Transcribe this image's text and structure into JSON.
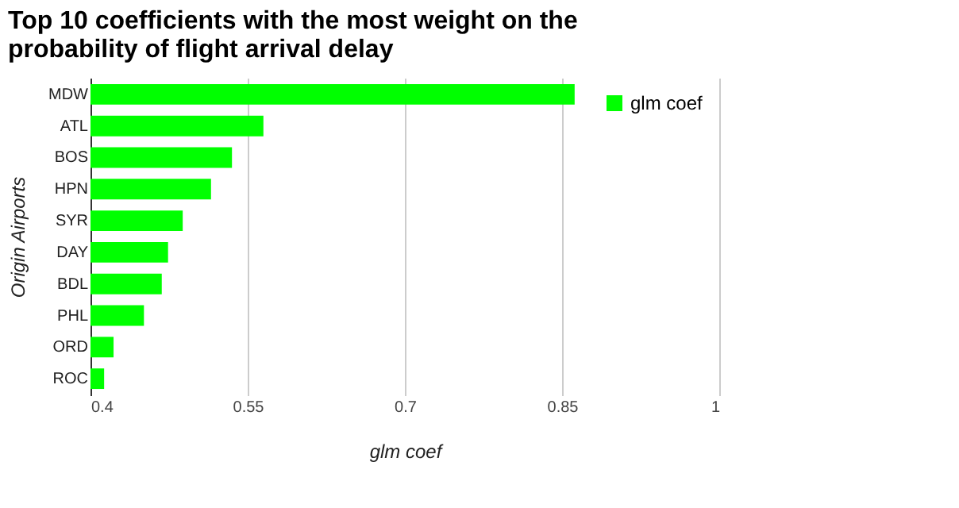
{
  "chart_data": {
    "type": "bar",
    "orientation": "horizontal",
    "title": [
      "Top 10 coefficients with the most weight on the",
      "probability of flight arrival delay"
    ],
    "xlabel": "glm coef",
    "ylabel": "Origin Airports",
    "categories": [
      "MDW",
      "ATL",
      "BOS",
      "HPN",
      "SYR",
      "DAY",
      "BDL",
      "PHL",
      "ORD",
      "ROC"
    ],
    "series": [
      {
        "name": "glm coef",
        "color": "#00ff00",
        "values": [
          0.862,
          0.565,
          0.535,
          0.515,
          0.488,
          0.474,
          0.468,
          0.451,
          0.422,
          0.413
        ]
      }
    ],
    "xlim": [
      0.4,
      1
    ],
    "xticks": [
      0.4,
      0.55,
      0.7,
      0.85,
      1
    ],
    "grid": "x",
    "legend": "top right"
  }
}
